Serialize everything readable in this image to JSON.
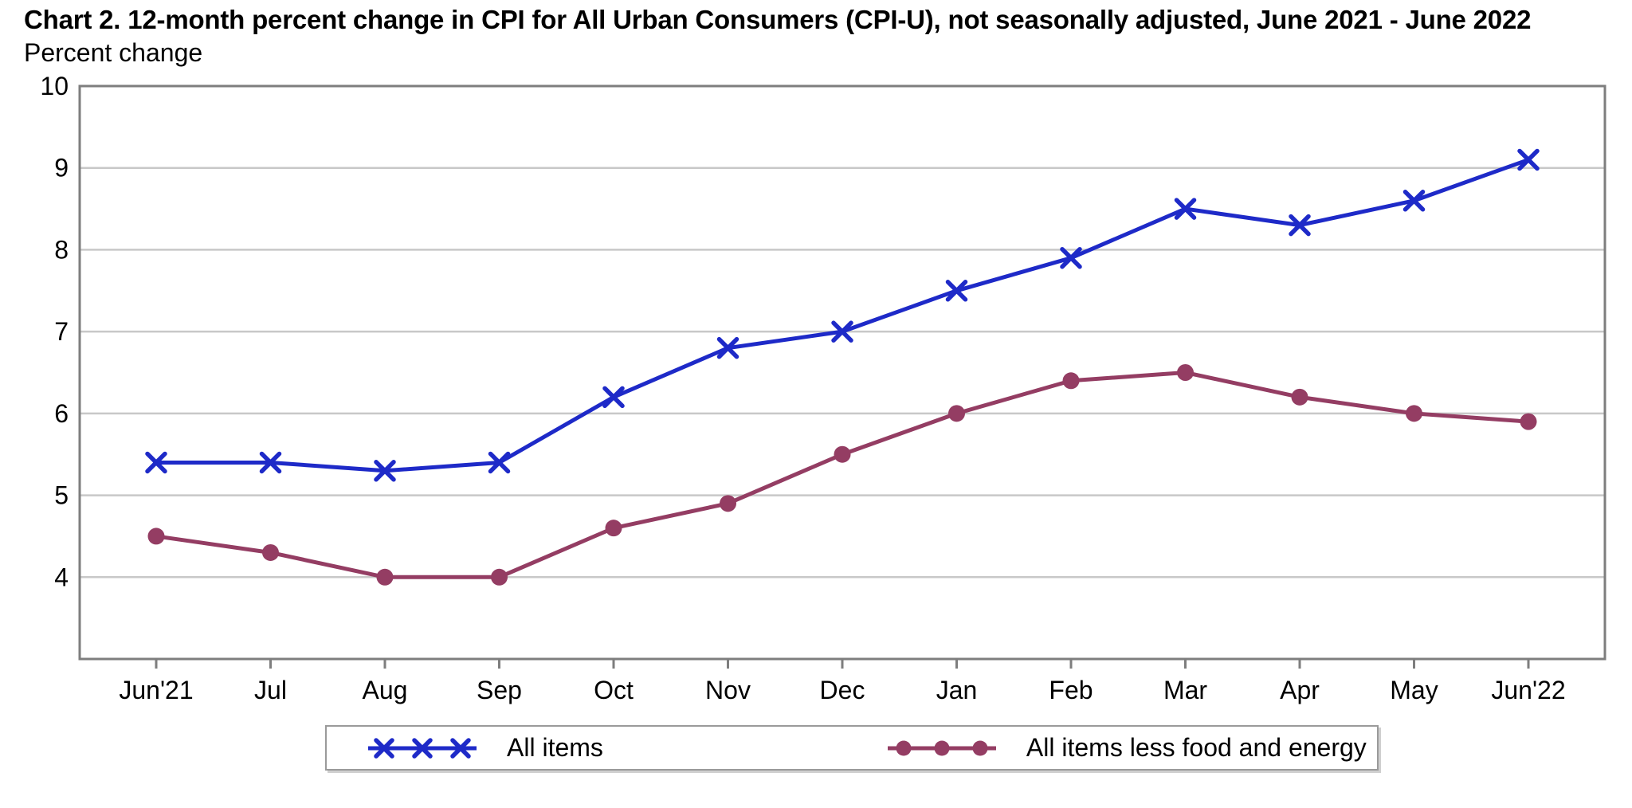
{
  "title": "Chart 2. 12-month percent change in CPI for All Urban Consumers (CPI-U), not seasonally adjusted, June 2021 - June 2022",
  "subtitle": "Percent change",
  "chart_data": {
    "type": "line",
    "categories": [
      "Jun'21",
      "Jul",
      "Aug",
      "Sep",
      "Oct",
      "Nov",
      "Dec",
      "Jan",
      "Feb",
      "Mar",
      "Apr",
      "May",
      "Jun'22"
    ],
    "series": [
      {
        "name": "All items",
        "marker": "x",
        "color": "#1E2AC8",
        "values": [
          5.4,
          5.4,
          5.3,
          5.4,
          6.2,
          6.8,
          7.0,
          7.5,
          7.9,
          8.5,
          8.3,
          8.6,
          9.1
        ]
      },
      {
        "name": "All items less food and energy",
        "marker": "circle",
        "color": "#943D63",
        "values": [
          4.5,
          4.3,
          4.0,
          4.0,
          4.6,
          4.9,
          5.5,
          6.0,
          6.4,
          6.5,
          6.2,
          6.0,
          5.9
        ]
      }
    ],
    "xlabel": "",
    "ylabel": "Percent change",
    "ylim": [
      3,
      10
    ],
    "yticks": [
      4,
      5,
      6,
      7,
      8,
      9,
      10
    ],
    "grid": true,
    "legend_position": "bottom"
  },
  "colors": {
    "grid": "#c8c8c8",
    "frame": "#7e7e7e",
    "text": "#000000",
    "background": "#ffffff"
  }
}
